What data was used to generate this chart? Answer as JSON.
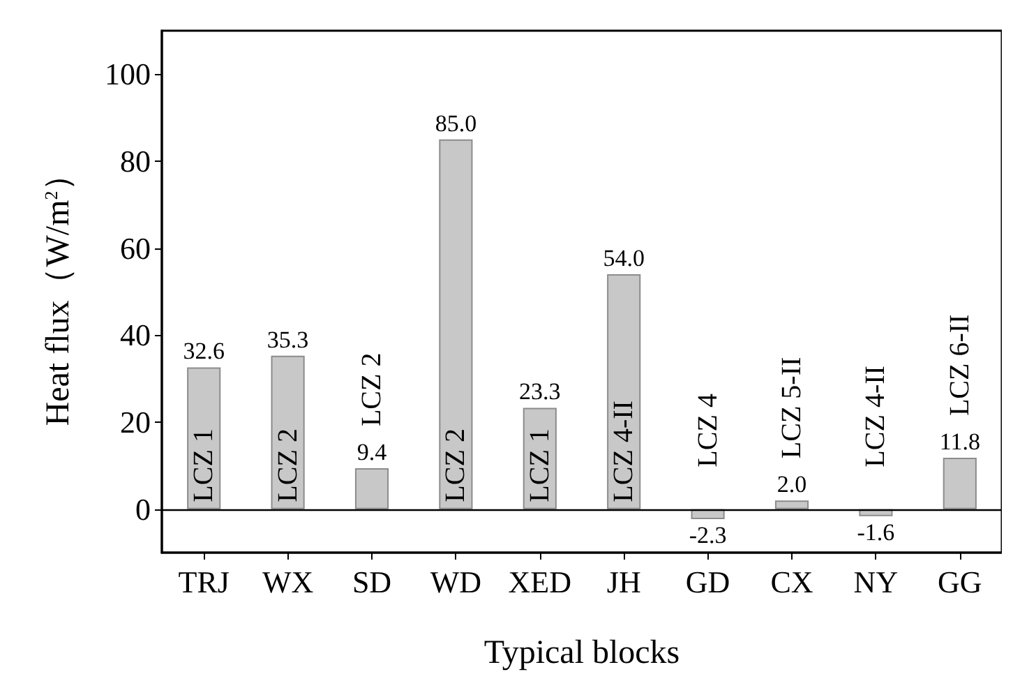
{
  "chart_data": {
    "type": "bar",
    "xlabel": "Typical blocks",
    "ylabel": "Heat flux（W/m$^{2}$）",
    "categories": [
      "TRJ",
      "WX",
      "SD",
      "WD",
      "XED",
      "JH",
      "GD",
      "CX",
      "NY",
      "GG"
    ],
    "values": [
      32.6,
      35.3,
      9.4,
      85.0,
      23.3,
      54.0,
      -2.3,
      2.0,
      -1.6,
      11.8
    ],
    "value_labels": [
      "32.6",
      "35.3",
      "9.4",
      "85.0",
      "23.3",
      "54.0",
      "-2.3",
      "2.0",
      "-1.6",
      "11.8"
    ],
    "color": "#c8c8c8",
    "ylim": [
      -10,
      110
    ],
    "yticks": [
      0,
      20,
      40,
      60,
      80,
      100
    ],
    "ref_lines": [
      {
        "axis": "y",
        "value": 0,
        "label": null
      }
    ],
    "annotations": [
      "LCZ 1",
      "LCZ 2",
      "LCZ 2",
      "LCZ 2",
      "LCZ 1",
      "LCZ 4-II",
      "LCZ 4",
      "LCZ 5-II",
      "LCZ 4-II",
      "LCZ 6-II"
    ]
  }
}
